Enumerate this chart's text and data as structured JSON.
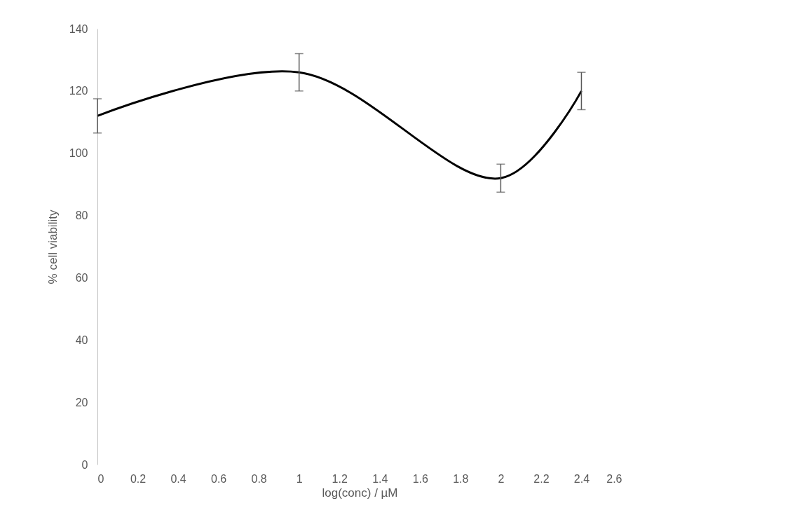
{
  "chart_data": {
    "type": "line",
    "xlabel": "log(conc) / µM",
    "ylabel": "% cell viability",
    "x": [
      0,
      1,
      2,
      2.4
    ],
    "series": [
      {
        "color": "#000000",
        "values": [
          112,
          126,
          92,
          120
        ],
        "errors": [
          5.5,
          6,
          4.5,
          6
        ]
      }
    ],
    "xlim": [
      0,
      2.6
    ],
    "xticks": [
      0,
      0.2,
      0.4,
      0.6,
      0.8,
      1,
      1.2,
      1.4,
      1.6,
      1.8,
      2,
      2.2,
      2.4,
      2.6
    ],
    "ylim": [
      0,
      140
    ],
    "yticks": [
      0,
      20,
      40,
      60,
      80,
      100,
      120,
      140
    ],
    "grid": false,
    "marker": "none",
    "line_style": "solid"
  }
}
